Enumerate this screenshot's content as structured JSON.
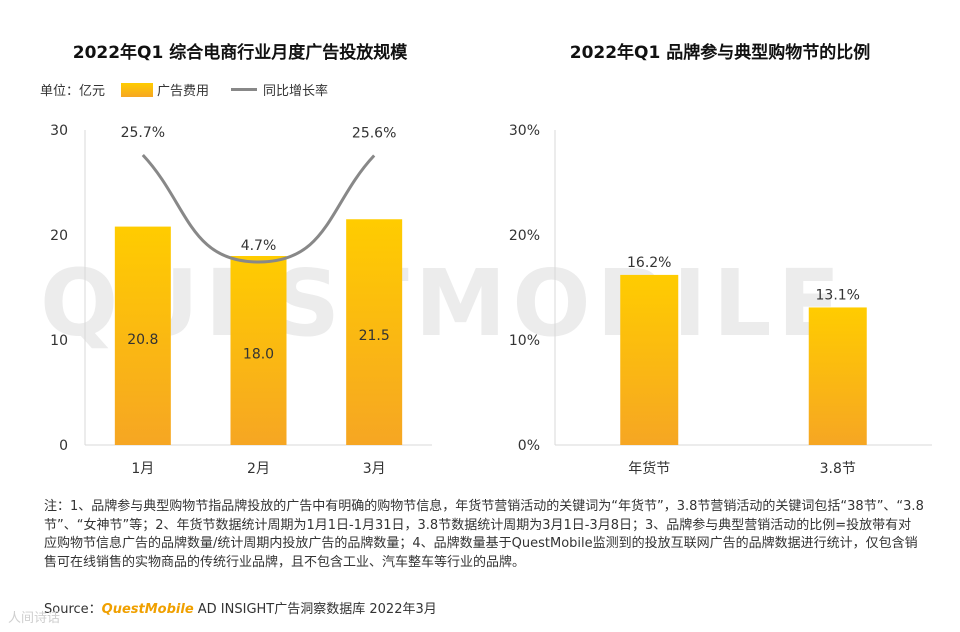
{
  "watermark": "QUESTMOBILE",
  "left_chart": {
    "title": "2022年Q1 综合电商行业月度广告投放规模",
    "unit_label": "单位：亿元",
    "legend_bar": "广告费用",
    "legend_line": "同比增长率"
  },
  "right_chart": {
    "title": "2022年Q1 品牌参与典型购物节的比例"
  },
  "chart_data": [
    {
      "type": "bar",
      "title": "2022年Q1 综合电商行业月度广告投放规模",
      "unit": "亿元",
      "categories": [
        "1月",
        "2月",
        "3月"
      ],
      "ylim": [
        0,
        30
      ],
      "yticks": [
        "0",
        "10",
        "20",
        "30"
      ],
      "series": [
        {
          "name": "广告费用",
          "type": "bar",
          "values": [
            20.8,
            18.0,
            21.5
          ],
          "labels": [
            "20.8",
            "18.0",
            "21.5"
          ]
        },
        {
          "name": "同比增长率",
          "type": "line",
          "values": [
            25.7,
            4.7,
            25.6
          ],
          "labels": [
            "25.7%",
            "4.7%",
            "25.6%"
          ]
        }
      ],
      "colors": {
        "bar_top": "#ffcc00",
        "bar_bottom": "#f6a623",
        "line": "#888888"
      },
      "grid": false
    },
    {
      "type": "bar",
      "title": "2022年Q1 品牌参与典型购物节的比例",
      "categories": [
        "年货节",
        "3.8节"
      ],
      "ylim": [
        0,
        30
      ],
      "yticks": [
        "0%",
        "10%",
        "20%",
        "30%"
      ],
      "values": [
        16.2,
        13.1
      ],
      "labels": [
        "16.2%",
        "13.1%"
      ],
      "colors": {
        "bar_top": "#ffcc00",
        "bar_bottom": "#f6a623"
      },
      "grid": false
    }
  ],
  "notes": "注：1、品牌参与典型购物节指品牌投放的广告中有明确的购物节信息，年货节营销活动的关键词为“年货节”，3.8节营销活动的关键词包括“38节”、“3.8节”、“女神节”等；2、年货节数据统计周期为1月1日-1月31日，3.8节数据统计周期为3月1日-3月8日；3、品牌参与典型营销活动的比例=投放带有对应购物节信息广告的品牌数量/统计周期内投放广告的品牌数量；4、品牌数量基于QuestMobile监测到的投放互联网广告的品牌数据进行统计，仅包含销售可在线销售的实物商品的传统行业品牌，且不包含工业、汽车整车等行业的品牌。",
  "source": {
    "prefix": "Source：",
    "brand": "QuestMobile",
    "text": " AD INSIGHT广告洞察数据库 2022年3月"
  },
  "corner_mark": "人间诗话"
}
